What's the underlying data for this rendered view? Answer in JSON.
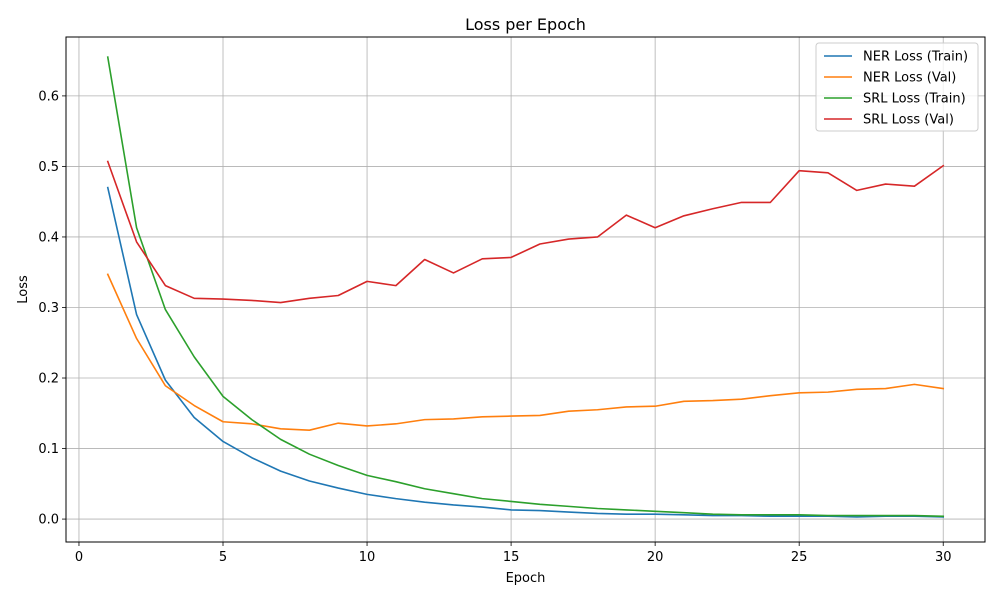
{
  "chart_data": {
    "type": "line",
    "title": "Loss per Epoch",
    "xlabel": "Epoch",
    "ylabel": "Loss",
    "xlim": [
      -0.45,
      31.45
    ],
    "ylim": [
      -0.0325,
      0.6835
    ],
    "x_ticks": [
      0,
      5,
      10,
      15,
      20,
      25,
      30
    ],
    "y_ticks": [
      0.0,
      0.1,
      0.2,
      0.3,
      0.4,
      0.5,
      0.6
    ],
    "x_tick_labels": [
      "0",
      "5",
      "10",
      "15",
      "20",
      "25",
      "30"
    ],
    "y_tick_labels": [
      "0.0",
      "0.1",
      "0.2",
      "0.3",
      "0.4",
      "0.5",
      "0.6"
    ],
    "grid": true,
    "legend_position": "top-right",
    "x": [
      1,
      2,
      3,
      4,
      5,
      6,
      7,
      8,
      9,
      10,
      11,
      12,
      13,
      14,
      15,
      16,
      17,
      18,
      19,
      20,
      21,
      22,
      23,
      24,
      25,
      26,
      27,
      28,
      29,
      30
    ],
    "series": [
      {
        "name": "NER Loss (Train)",
        "color": "#1f77b4",
        "values": [
          0.47,
          0.29,
          0.197,
          0.144,
          0.11,
          0.087,
          0.068,
          0.054,
          0.044,
          0.035,
          0.029,
          0.024,
          0.02,
          0.017,
          0.013,
          0.012,
          0.01,
          0.008,
          0.007,
          0.007,
          0.006,
          0.005,
          0.005,
          0.004,
          0.004,
          0.004,
          0.003,
          0.004,
          0.004,
          0.003
        ]
      },
      {
        "name": "NER Loss (Val)",
        "color": "#ff7f0e",
        "values": [
          0.347,
          0.256,
          0.189,
          0.161,
          0.138,
          0.135,
          0.128,
          0.126,
          0.136,
          0.132,
          0.135,
          0.141,
          0.142,
          0.145,
          0.146,
          0.147,
          0.153,
          0.155,
          0.159,
          0.16,
          0.167,
          0.168,
          0.17,
          0.175,
          0.179,
          0.18,
          0.184,
          0.185,
          0.191,
          0.185
        ]
      },
      {
        "name": "SRL Loss (Train)",
        "color": "#2ca02c",
        "values": [
          0.655,
          0.413,
          0.297,
          0.23,
          0.174,
          0.141,
          0.113,
          0.092,
          0.076,
          0.062,
          0.053,
          0.043,
          0.036,
          0.029,
          0.025,
          0.021,
          0.018,
          0.015,
          0.013,
          0.011,
          0.009,
          0.007,
          0.006,
          0.006,
          0.006,
          0.005,
          0.005,
          0.005,
          0.005,
          0.004
        ]
      },
      {
        "name": "SRL Loss (Val)",
        "color": "#d62728",
        "values": [
          0.507,
          0.393,
          0.331,
          0.313,
          0.312,
          0.31,
          0.307,
          0.313,
          0.317,
          0.337,
          0.331,
          0.368,
          0.349,
          0.369,
          0.371,
          0.39,
          0.397,
          0.4,
          0.431,
          0.413,
          0.43,
          0.44,
          0.449,
          0.449,
          0.494,
          0.491,
          0.466,
          0.475,
          0.472,
          0.501
        ]
      }
    ]
  }
}
